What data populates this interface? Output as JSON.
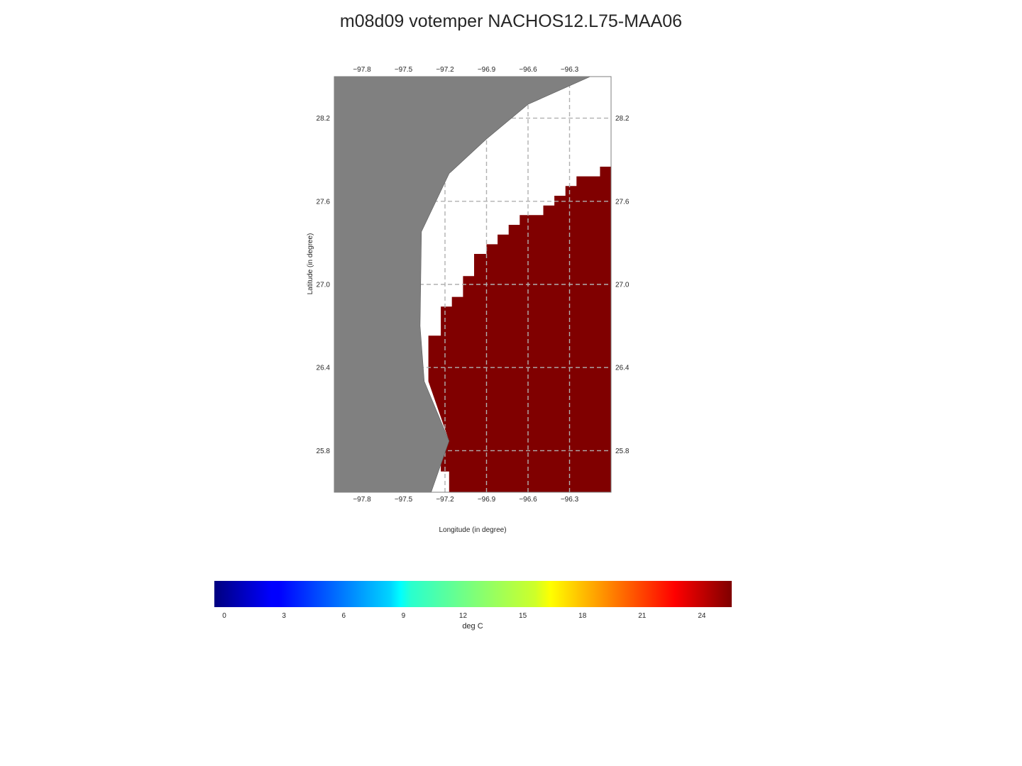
{
  "title": "m08d09 votemper NACHOS12.L75-MAA06",
  "colors": {
    "land": "#808080",
    "ocean_field": "#800000",
    "grid": "#b0b0b0",
    "frame": "#7f7f7f"
  },
  "chart_data": {
    "type": "heatmap",
    "xlabel": "Longitude (in degree)",
    "ylabel": "Latitude (in degree)",
    "xlim": [
      -98.0,
      -96.0
    ],
    "ylim": [
      25.5,
      28.5
    ],
    "xticks": [
      -97.8,
      -97.5,
      -97.2,
      -96.9,
      -96.6,
      -96.3
    ],
    "xtick_labels": [
      "−97.8",
      "−97.5",
      "−97.2",
      "−96.9",
      "−96.6",
      "−96.3"
    ],
    "yticks": [
      28.2,
      27.6,
      27.0,
      26.4,
      25.8
    ],
    "ytick_labels": [
      "28.2",
      "27.6",
      "27.0",
      "26.4",
      "25.8"
    ],
    "grid": true,
    "land_outline": [
      [
        -98.0,
        28.5
      ],
      [
        -96.15,
        28.5
      ],
      [
        -96.6,
        28.3
      ],
      [
        -96.9,
        28.05
      ],
      [
        -97.17,
        27.8
      ],
      [
        -97.37,
        27.38
      ],
      [
        -97.38,
        26.7
      ],
      [
        -97.35,
        26.3
      ],
      [
        -97.17,
        25.87
      ],
      [
        -97.3,
        25.5
      ],
      [
        -98.0,
        25.5
      ]
    ],
    "field_value": 25,
    "field_outline": [
      [
        -96.0,
        27.85
      ],
      [
        -96.08,
        27.85
      ],
      [
        -96.08,
        27.78
      ],
      [
        -96.25,
        27.78
      ],
      [
        -96.25,
        27.71
      ],
      [
        -96.33,
        27.71
      ],
      [
        -96.33,
        27.64
      ],
      [
        -96.41,
        27.64
      ],
      [
        -96.41,
        27.57
      ],
      [
        -96.49,
        27.57
      ],
      [
        -96.49,
        27.5
      ],
      [
        -96.66,
        27.5
      ],
      [
        -96.66,
        27.43
      ],
      [
        -96.74,
        27.43
      ],
      [
        -96.74,
        27.36
      ],
      [
        -96.82,
        27.36
      ],
      [
        -96.82,
        27.29
      ],
      [
        -96.9,
        27.29
      ],
      [
        -96.9,
        27.22
      ],
      [
        -96.99,
        27.22
      ],
      [
        -96.99,
        27.06
      ],
      [
        -97.07,
        27.06
      ],
      [
        -97.07,
        26.91
      ],
      [
        -97.15,
        26.91
      ],
      [
        -97.15,
        26.84
      ],
      [
        -97.23,
        26.84
      ],
      [
        -97.23,
        26.63
      ],
      [
        -97.32,
        26.63
      ],
      [
        -97.32,
        26.3
      ],
      [
        -97.17,
        25.87
      ],
      [
        -97.23,
        25.72
      ],
      [
        -97.23,
        25.65
      ],
      [
        -97.17,
        25.65
      ],
      [
        -97.17,
        25.5
      ],
      [
        -96.0,
        25.5
      ]
    ],
    "colorbar": {
      "label": "deg C",
      "range": [
        -0.5,
        25.5
      ],
      "ticks": [
        0,
        3,
        6,
        9,
        12,
        15,
        18,
        21,
        24
      ],
      "tick_labels": [
        "0",
        "3",
        "6",
        "9",
        "12",
        "15",
        "18",
        "21",
        "24"
      ],
      "colormap": "jet"
    }
  }
}
